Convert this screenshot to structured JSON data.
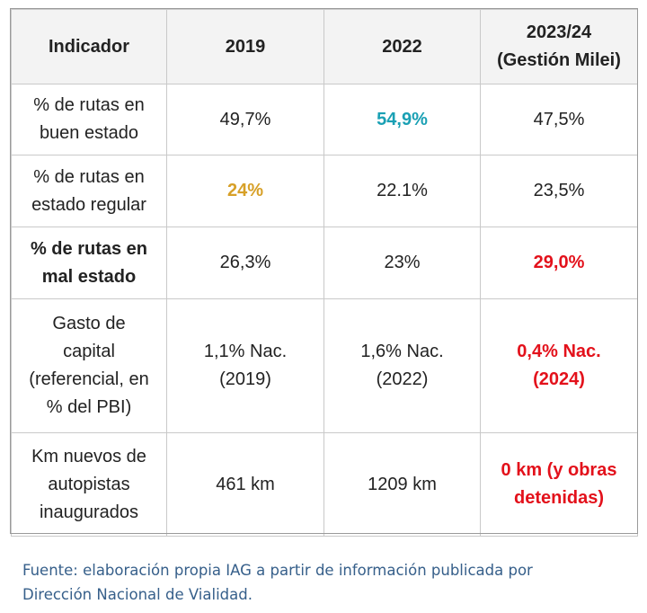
{
  "table": {
    "headers": [
      "Indicador",
      "2019",
      "2022",
      "2023/24",
      "(Gestión Milei)"
    ],
    "rows": [
      {
        "indicator": [
          "% de rutas en",
          "buen estado"
        ],
        "v2019": "49,7%",
        "v2022": "54,9%",
        "v2024": "47,5%"
      },
      {
        "indicator": [
          "% de rutas en",
          "estado regular"
        ],
        "v2019": "24%",
        "v2022": "22.1%",
        "v2024": "23,5%"
      },
      {
        "indicator": [
          "% de rutas en",
          "mal estado"
        ],
        "v2019": "26,3%",
        "v2022": "23%",
        "v2024": "29,0%"
      },
      {
        "indicator": [
          "Gasto de",
          "capital",
          "(referencial, en",
          "% del PBI)"
        ],
        "v2019": [
          "1,1% Nac.",
          "(2019)"
        ],
        "v2022": [
          "1,6% Nac.",
          "(2022)"
        ],
        "v2024": [
          "0,4% Nac.",
          "(2024)"
        ]
      },
      {
        "indicator": [
          "Km nuevos de",
          "autopistas",
          "inaugurados"
        ],
        "v2019": "461 km",
        "v2022": "1209 km",
        "v2024": [
          "0 km (y obras",
          "detenidas)"
        ]
      }
    ]
  },
  "colors": {
    "highlight_teal": "#1aa0b4",
    "highlight_gold": "#d7a028",
    "highlight_red": "#e3111b",
    "footer_text": "#365f8a",
    "header_bg": "#f3f3f3"
  },
  "footer": {
    "line1": "Fuente: elaboración propia IAG a partir de información publicada por",
    "line2": "Dirección Nacional de Vialidad."
  }
}
